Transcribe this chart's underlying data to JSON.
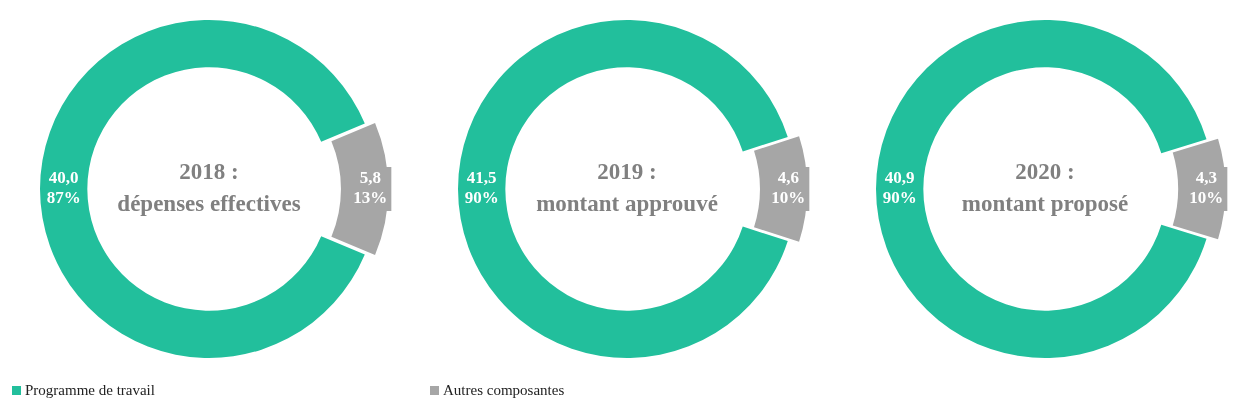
{
  "chart_data": [
    {
      "type": "donut",
      "title": "2018 :",
      "subtitle": "dépenses effectives",
      "categories": [
        "Programme de travail",
        "Autres composantes"
      ],
      "values": [
        40.0,
        5.8
      ],
      "colors": [
        "#22bf9c",
        "#a6a6a6"
      ],
      "value_labels": [
        "40,0\n87%",
        "5,8\n13%"
      ],
      "legend": "bottom"
    },
    {
      "type": "donut",
      "title": "2019 :",
      "subtitle": "montant approuvé",
      "categories": [
        null,
        null
      ],
      "values": [
        41.5,
        4.6
      ],
      "colors": [
        "#22bf9c",
        "#a6a6a6"
      ],
      "value_labels": [
        "41,5\n90%",
        "4,6\n10%"
      ]
    },
    {
      "type": "donut",
      "title": "2020 :",
      "subtitle": "montant proposé",
      "categories": [
        null,
        null
      ],
      "values": [
        40.9,
        4.3
      ],
      "colors": [
        "#22bf9c",
        "#a6a6a6"
      ],
      "value_labels": [
        "40,9\n90%",
        "4,3\n10%"
      ]
    }
  ]
}
